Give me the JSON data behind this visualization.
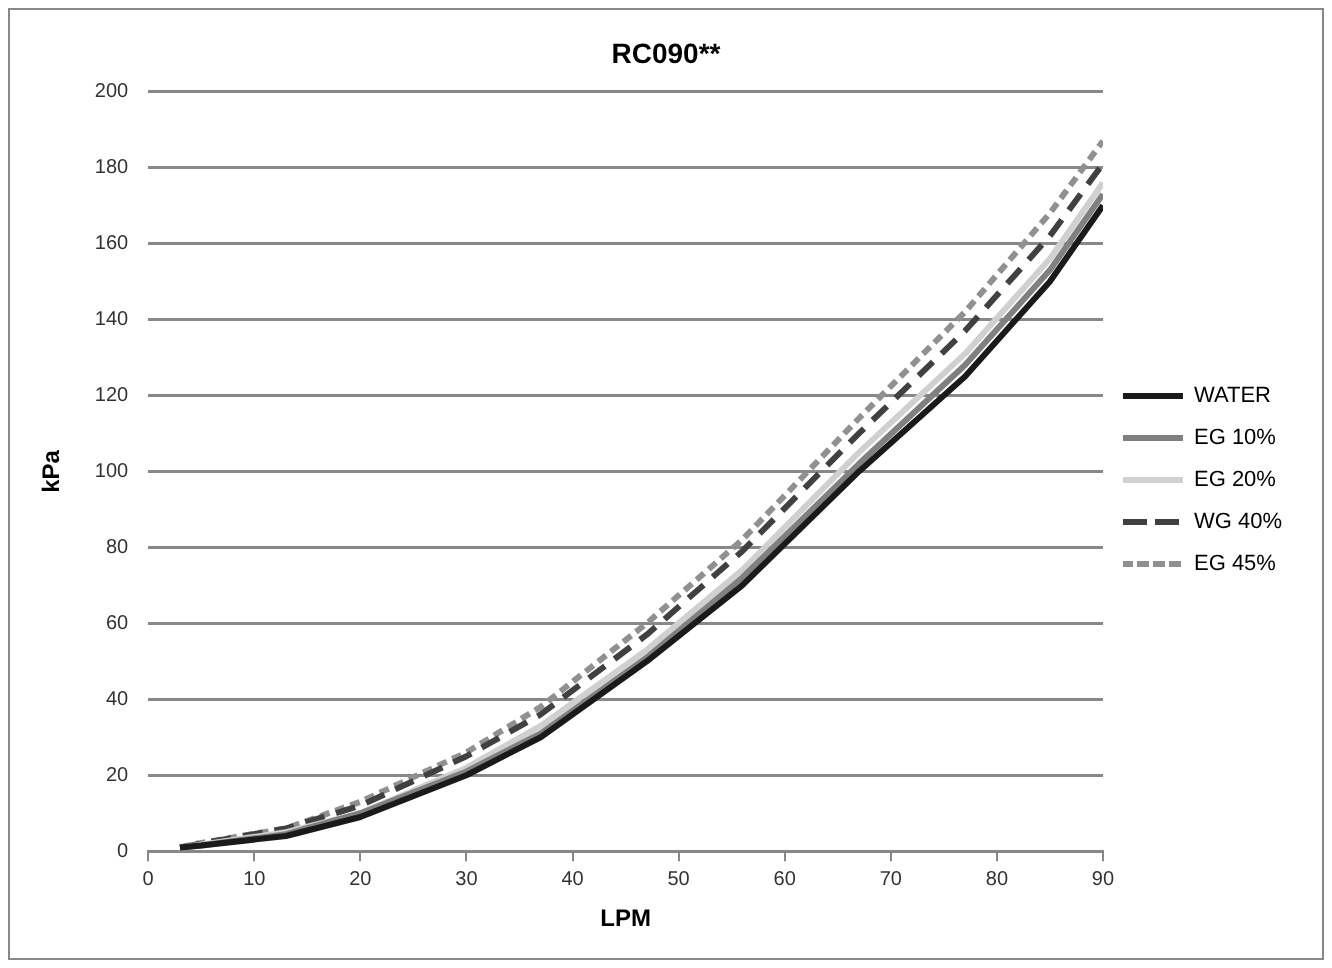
{
  "chart_data": {
    "type": "line",
    "title": "RC090**",
    "xlabel": "LPM",
    "ylabel": "kPa",
    "xlim": [
      0,
      90
    ],
    "xticks": [
      0,
      10,
      20,
      30,
      40,
      50,
      60,
      70,
      80,
      90
    ],
    "ylim": [
      0,
      200
    ],
    "yticks": [
      0,
      20,
      40,
      60,
      80,
      100,
      120,
      140,
      160,
      180,
      200
    ],
    "x": [
      3,
      5,
      13,
      20,
      30,
      37,
      47,
      56,
      67,
      77,
      85,
      90
    ],
    "series": [
      {
        "name": "WATER",
        "color": "#1a1a1a",
        "line_style": "solid",
        "values": [
          1,
          1.5,
          4,
          9,
          20,
          30,
          50,
          70,
          100,
          125,
          150,
          170
        ]
      },
      {
        "name": "EG 10%",
        "color": "#808080",
        "line_style": "solid",
        "values": [
          1,
          1.5,
          4.5,
          10,
          21,
          31,
          51,
          72,
          102,
          128,
          153,
          173
        ]
      },
      {
        "name": "EG 20%",
        "color": "#d0d0d0",
        "line_style": "solid",
        "values": [
          1,
          1.7,
          5,
          10,
          22,
          33,
          53,
          74,
          105,
          131,
          156,
          176
        ]
      },
      {
        "name": "WG 40%",
        "color": "#404040",
        "line_style": "dashed",
        "values": [
          1,
          2,
          6,
          12,
          25,
          36,
          57,
          79,
          110,
          137,
          162,
          181
        ]
      },
      {
        "name": "EG 45%",
        "color": "#909090",
        "line_style": "dotted",
        "values": [
          1,
          2.2,
          6,
          13,
          26,
          38,
          60,
          82,
          114,
          142,
          168,
          187
        ]
      }
    ],
    "grid": "y",
    "legend": "right",
    "marker": "none"
  }
}
